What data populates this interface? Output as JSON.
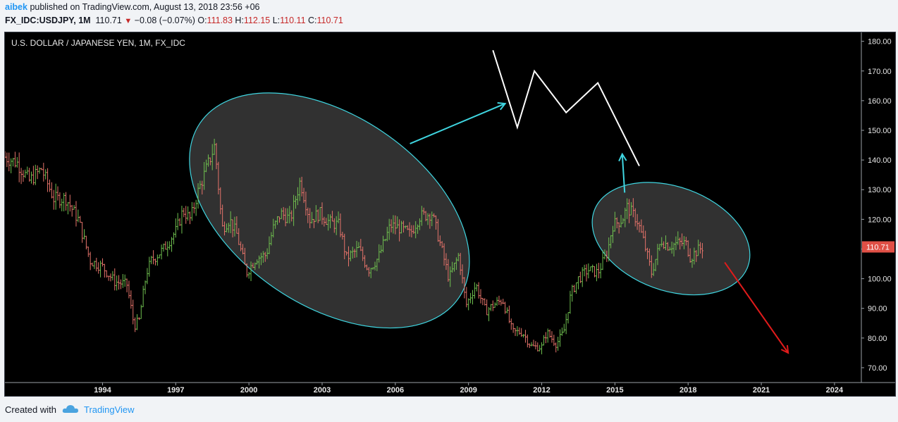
{
  "header": {
    "author": "aibek",
    "published_text": "published on TradingView.com, August 13, 2018 23:56 +06",
    "symbol": "FX_IDC:USDJPY, 1M",
    "last_price": "110.71",
    "change_arrow": "▼",
    "change_text": "−0.08 (−0.07%)",
    "open_label": "O:",
    "open_value": "111.83",
    "high_label": "H:",
    "high_value": "112.15",
    "low_label": "L:",
    "low_value": "110.11",
    "close_label": "C:",
    "close_value": "110.71"
  },
  "footer": {
    "created_with": "Created with",
    "brand": "TradingView",
    "logo_icon": "tradingview-cloud-icon"
  },
  "colors": {
    "background": "#000000",
    "up_bar": "#6fbf4f",
    "down_bar": "#e5736a",
    "ellipse_stroke": "#3fd5e0",
    "ellipse_fill": "#3a3a3a",
    "arrow_cyan": "#3fd5e0",
    "arrow_red": "#e01b1b",
    "projection_line": "#ffffff",
    "price_label_bg": "#e05046"
  },
  "chart_data": {
    "type": "ohlc",
    "title": "U.S. DOLLAR / JAPANESE YEN, 1M, FX_IDC",
    "timeframe": "1M",
    "x_tick_labels": [
      "1994",
      "1997",
      "2000",
      "2003",
      "2006",
      "2009",
      "2012",
      "2015",
      "2018",
      "2021",
      "2024"
    ],
    "y_tick_labels": [
      "180.00",
      "170.00",
      "160.00",
      "150.00",
      "140.00",
      "130.00",
      "120.00",
      "110.00",
      "100.00",
      "90.00",
      "80.00",
      "70.00"
    ],
    "xlim": [
      1990.0,
      2025.1
    ],
    "ylim": [
      65,
      183
    ],
    "last_price_label": "110.71",
    "price_path": [
      [
        1990.0,
        141
      ],
      [
        1990.5,
        139
      ],
      [
        1991.0,
        133
      ],
      [
        1991.5,
        137
      ],
      [
        1992.0,
        127
      ],
      [
        1992.5,
        127
      ],
      [
        1993.0,
        120
      ],
      [
        1993.5,
        106
      ],
      [
        1994.0,
        104
      ],
      [
        1994.5,
        99
      ],
      [
        1995.0,
        98
      ],
      [
        1995.3,
        84
      ],
      [
        1995.5,
        86
      ],
      [
        1995.8,
        102
      ],
      [
        1996.0,
        106
      ],
      [
        1996.5,
        110
      ],
      [
        1997.0,
        116
      ],
      [
        1997.3,
        123
      ],
      [
        1997.6,
        120
      ],
      [
        1997.9,
        129
      ],
      [
        1998.3,
        138
      ],
      [
        1998.6,
        145
      ],
      [
        1998.9,
        117
      ],
      [
        1999.2,
        120
      ],
      [
        1999.5,
        115
      ],
      [
        1999.9,
        102
      ],
      [
        2000.3,
        107
      ],
      [
        2000.7,
        108
      ],
      [
        2001.0,
        117
      ],
      [
        2001.3,
        122
      ],
      [
        2001.7,
        120
      ],
      [
        2002.1,
        133
      ],
      [
        2002.5,
        120
      ],
      [
        2002.9,
        122
      ],
      [
        2003.3,
        119
      ],
      [
        2003.7,
        118
      ],
      [
        2004.0,
        107
      ],
      [
        2004.5,
        110
      ],
      [
        2004.9,
        103
      ],
      [
        2005.3,
        107
      ],
      [
        2005.8,
        118
      ],
      [
        2006.2,
        117
      ],
      [
        2006.6,
        115
      ],
      [
        2007.0,
        121
      ],
      [
        2007.5,
        122
      ],
      [
        2007.8,
        113
      ],
      [
        2008.2,
        100
      ],
      [
        2008.6,
        108
      ],
      [
        2008.9,
        91
      ],
      [
        2009.3,
        98
      ],
      [
        2009.7,
        89
      ],
      [
        2010.0,
        91
      ],
      [
        2010.4,
        93
      ],
      [
        2010.8,
        82
      ],
      [
        2011.2,
        82
      ],
      [
        2011.6,
        77
      ],
      [
        2012.0,
        77
      ],
      [
        2012.2,
        82
      ],
      [
        2012.6,
        78
      ],
      [
        2012.9,
        82
      ],
      [
        2013.2,
        95
      ],
      [
        2013.5,
        100
      ],
      [
        2013.9,
        103
      ],
      [
        2014.3,
        102
      ],
      [
        2014.7,
        109
      ],
      [
        2014.9,
        118
      ],
      [
        2015.3,
        120
      ],
      [
        2015.5,
        124
      ],
      [
        2015.9,
        120
      ],
      [
        2016.2,
        112
      ],
      [
        2016.5,
        102
      ],
      [
        2016.9,
        113
      ],
      [
        2017.2,
        111
      ],
      [
        2017.6,
        112
      ],
      [
        2017.9,
        112
      ],
      [
        2018.1,
        107
      ],
      [
        2018.3,
        109
      ],
      [
        2018.6,
        110.71
      ]
    ],
    "annotations": {
      "projection_zigzag": [
        [
          2010.0,
          177
        ],
        [
          2011.0,
          151
        ],
        [
          2011.7,
          170
        ],
        [
          2013.0,
          156
        ],
        [
          2014.3,
          166
        ],
        [
          2016.0,
          138
        ]
      ],
      "ellipses": [
        {
          "cx": 2003.3,
          "cy": 123,
          "rx": 6.4,
          "ry": 32,
          "rotate_deg": 34
        },
        {
          "cx": 2017.3,
          "cy": 113.5,
          "rx": 3.35,
          "ry": 17.5,
          "rotate_deg": 20
        }
      ],
      "arrows": [
        {
          "color": "cyan",
          "from": [
            2006.6,
            145.5
          ],
          "to": [
            2010.5,
            159
          ]
        },
        {
          "color": "cyan",
          "from": [
            2015.4,
            129
          ],
          "to": [
            2015.3,
            142
          ]
        },
        {
          "color": "red",
          "from": [
            2019.5,
            105.5
          ],
          "to": [
            2022.1,
            75
          ]
        }
      ]
    }
  }
}
